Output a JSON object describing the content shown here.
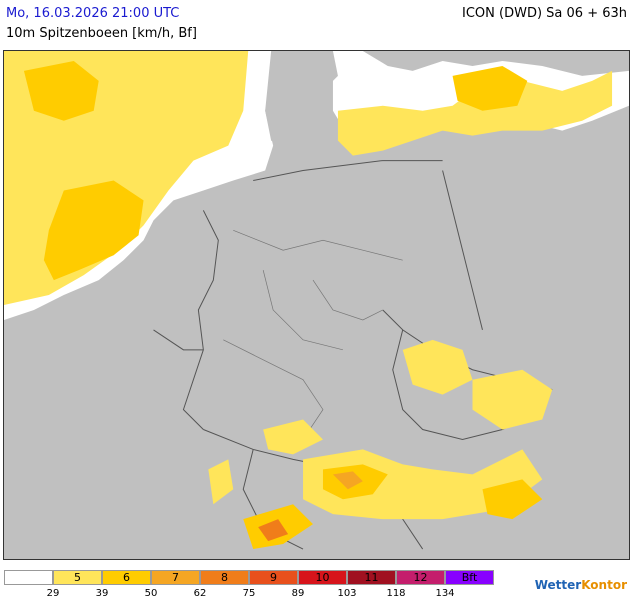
{
  "header": {
    "datetime": "Mo, 16.03.2026 21:00 UTC",
    "model_run": "ICON (DWD) Sa 06 + 63h",
    "parameter": "10m Spitzenboeen [km/h, Bf]"
  },
  "legend": {
    "bins": [
      {
        "label": "",
        "color": "#ffffff"
      },
      {
        "label": "5",
        "color": "#ffe55a"
      },
      {
        "label": "6",
        "color": "#ffcc00"
      },
      {
        "label": "7",
        "color": "#f5a623"
      },
      {
        "label": "8",
        "color": "#f07d1a"
      },
      {
        "label": "9",
        "color": "#e8501c"
      },
      {
        "label": "10",
        "color": "#d7141b"
      },
      {
        "label": "11",
        "color": "#a01020"
      },
      {
        "label": "12",
        "color": "#c41e6c"
      },
      {
        "label": "Bft",
        "color": "#8800ff"
      }
    ],
    "ticks": [
      "29",
      "39",
      "50",
      "62",
      "75",
      "89",
      "103",
      "118",
      "134"
    ]
  },
  "brand": {
    "part1": "Wetter",
    "part2": "Kontor"
  },
  "colors": {
    "land": "#c0c0c0",
    "sea_calm": "#ffffff",
    "border": "#555555"
  }
}
